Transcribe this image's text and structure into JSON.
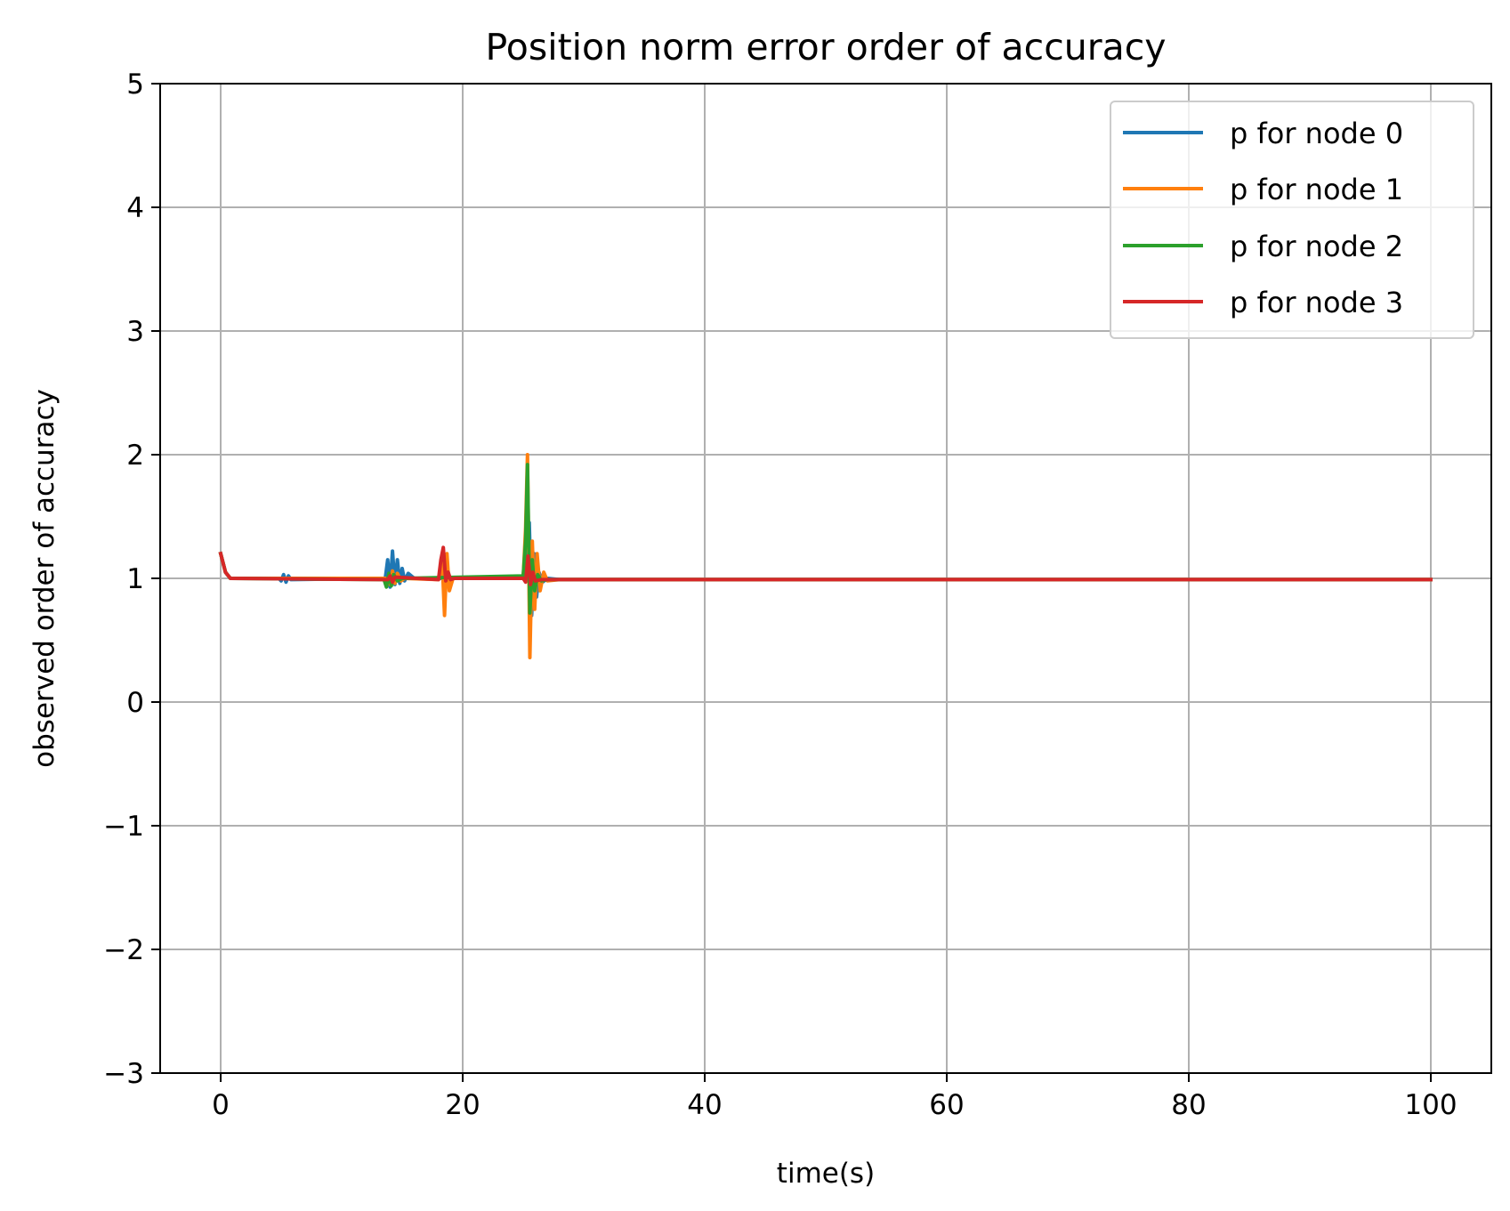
{
  "chart_data": {
    "type": "line",
    "title": "Position norm error order of accuracy",
    "xlabel": "time(s)",
    "ylabel": "observed order of accuracy",
    "xlim": [
      -5,
      105
    ],
    "ylim": [
      -3,
      5
    ],
    "xticks": [
      0,
      20,
      40,
      60,
      80,
      100
    ],
    "xtick_labels": [
      "0",
      "20",
      "40",
      "60",
      "80",
      "100"
    ],
    "yticks": [
      -3,
      -2,
      -1,
      0,
      1,
      2,
      3,
      4,
      5
    ],
    "ytick_labels": [
      "−3",
      "−2",
      "−1",
      "0",
      "1",
      "2",
      "3",
      "4",
      "5"
    ],
    "grid": true,
    "legend_position": "top-right",
    "series": [
      {
        "name": "p for node 0",
        "color": "#1f77b4",
        "x": [
          0,
          0.4,
          0.8,
          4.8,
          5.0,
          5.2,
          5.4,
          5.6,
          5.8,
          13.6,
          13.8,
          14.0,
          14.2,
          14.4,
          14.6,
          14.8,
          15.0,
          15.2,
          15.5,
          16.0,
          17.0,
          18.0,
          25.0,
          25.3,
          25.5,
          25.7,
          25.9,
          26.1,
          26.3,
          26.6,
          27.0,
          28.0,
          35.0,
          100
        ],
        "y": [
          1.2,
          1.05,
          1.0,
          1.0,
          0.98,
          1.03,
          0.97,
          1.02,
          0.99,
          1.0,
          1.15,
          0.93,
          1.22,
          0.95,
          1.15,
          0.96,
          1.08,
          0.98,
          1.04,
          1.0,
          1.0,
          1.0,
          1.0,
          1.1,
          1.45,
          0.7,
          1.2,
          0.85,
          1.05,
          0.97,
          1.0,
          0.99,
          0.99,
          0.99
        ]
      },
      {
        "name": "p for node 1",
        "color": "#ff7f0e",
        "x": [
          0,
          0.4,
          0.8,
          13.8,
          14.0,
          14.2,
          14.4,
          14.6,
          14.9,
          15.2,
          18.0,
          18.3,
          18.5,
          18.7,
          18.9,
          19.2,
          25.0,
          25.2,
          25.35,
          25.55,
          25.75,
          25.95,
          26.15,
          26.4,
          26.7,
          27.0,
          28.0,
          35.0,
          100
        ],
        "y": [
          1.2,
          1.05,
          1.0,
          1.0,
          0.95,
          1.06,
          0.96,
          1.04,
          0.98,
          1.0,
          0.99,
          1.15,
          0.7,
          1.2,
          0.9,
          1.0,
          1.0,
          1.4,
          2.0,
          0.36,
          1.3,
          0.75,
          1.2,
          0.9,
          1.05,
          0.98,
          0.99,
          0.99,
          0.99
        ]
      },
      {
        "name": "p for node 2",
        "color": "#2ca02c",
        "x": [
          0,
          0.4,
          0.8,
          13.5,
          13.7,
          13.9,
          14.1,
          14.3,
          14.6,
          15.0,
          20.0,
          25.0,
          25.2,
          25.35,
          25.55,
          25.75,
          25.95,
          26.2,
          26.5,
          27.0,
          28.0,
          35.0,
          100
        ],
        "y": [
          1.2,
          1.05,
          1.0,
          0.99,
          0.93,
          1.04,
          0.94,
          1.03,
          0.98,
          1.0,
          1.01,
          1.02,
          1.3,
          1.92,
          0.72,
          1.15,
          0.9,
          1.03,
          0.98,
          0.99,
          0.99,
          0.99,
          0.99
        ]
      },
      {
        "name": "p for node 3",
        "color": "#d62728",
        "x": [
          0,
          0.4,
          0.8,
          13.8,
          14.0,
          14.2,
          14.4,
          18.0,
          18.2,
          18.4,
          18.6,
          18.8,
          19.0,
          19.3,
          25.0,
          25.2,
          25.4,
          25.6,
          25.8,
          26.0,
          26.5,
          27.0,
          35.0,
          100
        ],
        "y": [
          1.2,
          1.05,
          1.0,
          0.99,
          1.02,
          0.97,
          1.01,
          0.99,
          1.15,
          1.25,
          0.98,
          1.05,
          0.99,
          1.0,
          1.0,
          0.97,
          1.18,
          0.95,
          1.05,
          0.98,
          0.99,
          0.99,
          0.99,
          0.99
        ]
      }
    ]
  }
}
